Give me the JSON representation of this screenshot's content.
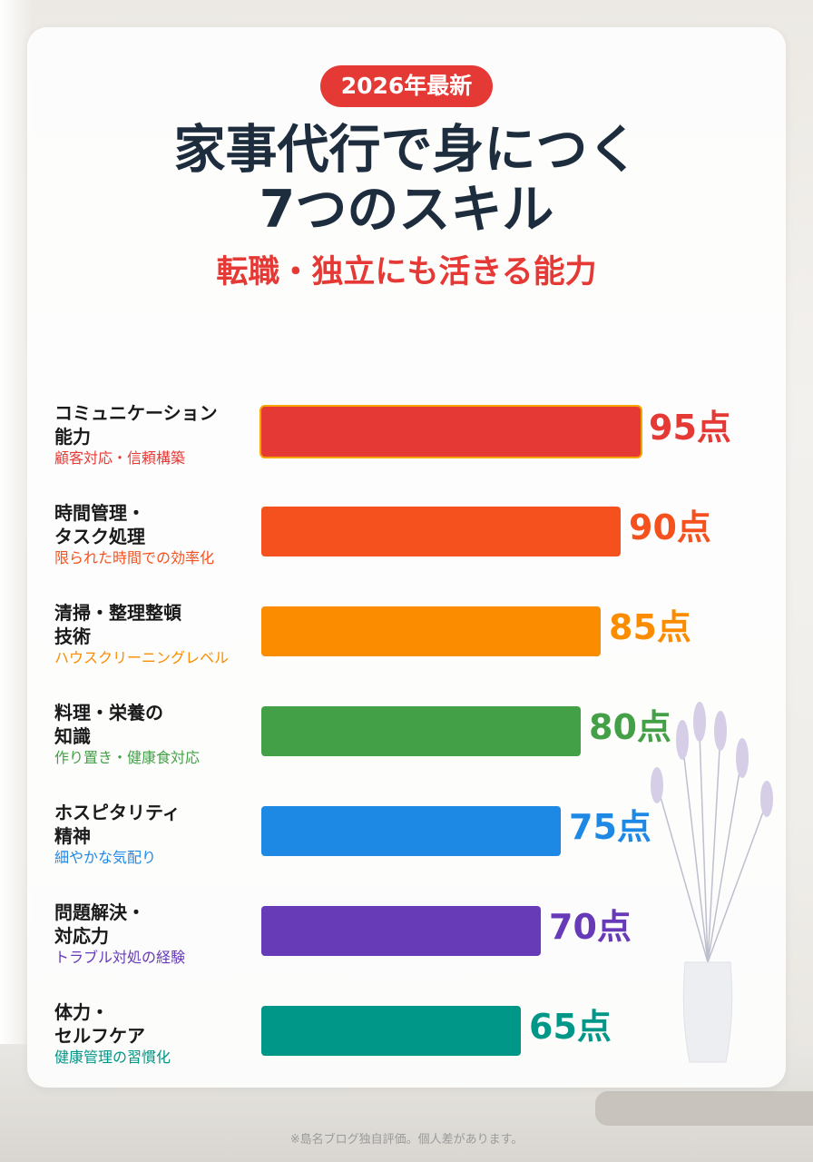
{
  "header": {
    "badge": "2026年最新",
    "title_line1": "家事代行で身につく",
    "title_line2": "7つのスキル",
    "subtitle": "転職・独立にも活きる能力"
  },
  "footnote": "※島名ブログ独自評価。個人差があります。",
  "chart_data": {
    "type": "bar",
    "orientation": "horizontal",
    "unit": "点",
    "xlim": [
      0,
      100
    ],
    "categories": [
      {
        "name_line1": "コミュニケーション",
        "name_line2": "能力",
        "sub": "顧客対応・信頼構築",
        "value": 95,
        "value_label": "95点",
        "color": "#e53935",
        "highlight": true
      },
      {
        "name_line1": "時間管理・",
        "name_line2": "タスク処理",
        "sub": "限られた時間での効率化",
        "value": 90,
        "value_label": "90点",
        "color": "#f4511e",
        "highlight": false
      },
      {
        "name_line1": "清掃・整理整頓",
        "name_line2": "技術",
        "sub": "ハウスクリーニングレベル",
        "value": 85,
        "value_label": "85点",
        "color": "#fb8c00",
        "highlight": false
      },
      {
        "name_line1": "料理・栄養の",
        "name_line2": "知識",
        "sub": "作り置き・健康食対応",
        "value": 80,
        "value_label": "80点",
        "color": "#43a047",
        "highlight": false
      },
      {
        "name_line1": "ホスピタリティ",
        "name_line2": "精神",
        "sub": "細やかな気配り",
        "value": 75,
        "value_label": "75点",
        "color": "#1e88e5",
        "highlight": false
      },
      {
        "name_line1": "問題解決・",
        "name_line2": "対応力",
        "sub": "トラブル対処の経験",
        "value": 70,
        "value_label": "70点",
        "color": "#673ab7",
        "highlight": false
      },
      {
        "name_line1": "体力・",
        "name_line2": "セルフケア",
        "sub": "健康管理の習慣化",
        "value": 65,
        "value_label": "65点",
        "color": "#009688",
        "highlight": false
      }
    ]
  }
}
